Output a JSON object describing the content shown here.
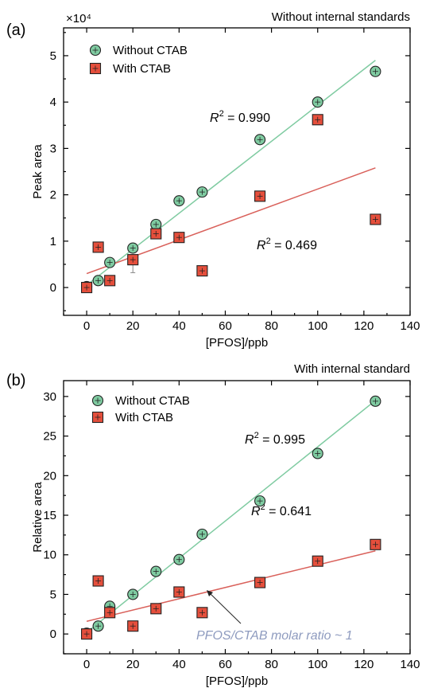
{
  "chart_data": [
    {
      "type": "scatter",
      "panel_label": "(a)",
      "title": "Without internal standards",
      "xlabel": "[PFOS]/ppb",
      "ylabel": "Peak area",
      "y_multiplier_label": "×10⁴",
      "xlim": [
        -10,
        140
      ],
      "ylim": [
        -0.6,
        5.6
      ],
      "xticks": [
        0,
        20,
        40,
        60,
        80,
        100,
        120,
        140
      ],
      "yticks": [
        0,
        1,
        2,
        3,
        4,
        5
      ],
      "grid": false,
      "legend_position": "top-left",
      "series": [
        {
          "name": "Without CTAB",
          "marker": "circle",
          "color": "#7fcba1",
          "x": [
            0,
            5,
            10,
            20,
            30,
            40,
            50,
            75,
            100,
            125
          ],
          "y": [
            0.02,
            0.15,
            0.54,
            0.85,
            1.36,
            1.87,
            2.06,
            3.19,
            4.0,
            4.66
          ],
          "fit": {
            "x": [
              0,
              125
            ],
            "y": [
              0.05,
              4.9
            ],
            "color": "#7fcba1",
            "r2_label": "R",
            "r2_sup": "2",
            "r2_value": " = 0.990"
          }
        },
        {
          "name": "With CTAB",
          "marker": "square",
          "color": "#e54f3c",
          "x": [
            0,
            5,
            10,
            20,
            30,
            40,
            50,
            75,
            100,
            125
          ],
          "y": [
            0.0,
            0.87,
            0.15,
            0.6,
            1.16,
            1.08,
            0.36,
            1.97,
            3.62,
            1.47
          ],
          "error": [
            0.05,
            0.05,
            0.05,
            0.28,
            0.05,
            0.05,
            0.05,
            0.05,
            0.05,
            0.05
          ],
          "fit": {
            "x": [
              0,
              125
            ],
            "y": [
              0.3,
              2.58
            ],
            "color": "#d9605a",
            "r2_label": "R",
            "r2_sup": "2",
            "r2_value": " = 0.469"
          }
        }
      ]
    },
    {
      "type": "scatter",
      "panel_label": "(b)",
      "title": "With internal standard",
      "xlabel": "[PFOS]/ppb",
      "ylabel": "Relative area",
      "xlim": [
        -10,
        140
      ],
      "ylim": [
        -2.5,
        32
      ],
      "xticks": [
        0,
        20,
        40,
        60,
        80,
        100,
        120,
        140
      ],
      "yticks": [
        0,
        5,
        10,
        15,
        20,
        25,
        30
      ],
      "grid": false,
      "legend_position": "top-left",
      "annotation": "PFOS/CTAB molar ratio ~ 1",
      "series": [
        {
          "name": "Without CTAB",
          "marker": "circle",
          "color": "#7fcba1",
          "x": [
            0,
            5,
            10,
            20,
            30,
            40,
            50,
            75,
            100,
            125
          ],
          "y": [
            0.1,
            1.0,
            3.5,
            5.0,
            7.9,
            9.4,
            12.6,
            16.8,
            22.8,
            29.4
          ],
          "fit": {
            "x": [
              0,
              125
            ],
            "y": [
              0.2,
              29.5
            ],
            "color": "#7fcba1",
            "r2_label": "R",
            "r2_sup": "2",
            "r2_value": " = 0.995"
          }
        },
        {
          "name": "With CTAB",
          "marker": "square",
          "color": "#e54f3c",
          "x": [
            0,
            5,
            10,
            20,
            30,
            40,
            50,
            75,
            100,
            125
          ],
          "y": [
            0.0,
            6.7,
            2.7,
            1.0,
            3.2,
            5.3,
            2.7,
            6.5,
            9.2,
            11.3
          ],
          "fit": {
            "x": [
              0,
              125
            ],
            "y": [
              1.6,
              10.5
            ],
            "color": "#d9605a",
            "r2_label": "R",
            "r2_sup": "2",
            "r2_value": " = 0.641"
          }
        }
      ]
    }
  ]
}
